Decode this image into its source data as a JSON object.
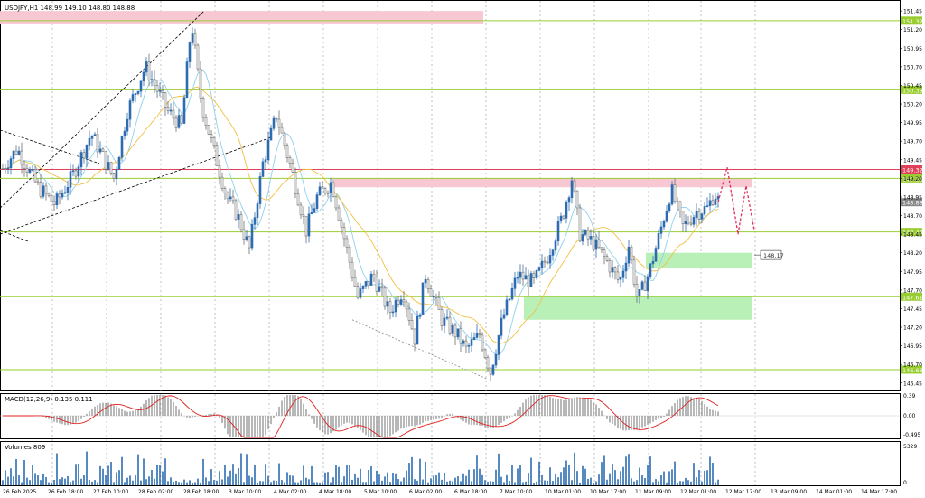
{
  "header": {
    "symbol_info": "USDJPY,H1  148.99 149.10 148.80 148.88",
    "macd_label": "MACD(12,26,9) 0.135 0.111",
    "volume_label": "Volumes 809"
  },
  "colors": {
    "bull": "#2d6db0",
    "bear": "#6e6e6e",
    "ma_fast": "#8fd0ea",
    "ma_slow": "#f0c040",
    "level_green": "#9acd32",
    "level_red": "#e0405a",
    "zone_red": "#f8c8d2",
    "zone_green": "#b8f0b8",
    "macd_signal": "#e02020",
    "forecast": "#e0305a",
    "volume": "#2d6db0",
    "grid": "#9a9a9a"
  },
  "chart_data": {
    "type": "candlestick",
    "symbol": "USDJPY",
    "timeframe": "H1",
    "ylim": [
      146.35,
      151.5
    ],
    "y_ticks": [
      "151.45",
      "151.20",
      "150.95",
      "150.70",
      "150.45",
      "150.20",
      "149.95",
      "149.70",
      "149.45",
      "149.20",
      "148.95",
      "148.70",
      "148.45",
      "148.20",
      "147.95",
      "147.70",
      "147.45",
      "147.20",
      "146.95",
      "146.70",
      "146.45"
    ],
    "x_ticks": [
      "26 Feb 2025",
      "26 Feb 18:00",
      "27 Feb 10:00",
      "28 Feb 02:00",
      "28 Feb 18:00",
      "3 Mar 10:00",
      "4 Mar 02:00",
      "4 Mar 18:00",
      "5 Mar 10:00",
      "6 Mar 02:00",
      "6 Mar 18:00",
      "7 Mar 10:00",
      "10 Mar 01:00",
      "10 Mar 17:00",
      "11 Mar 09:00",
      "12 Mar 01:00",
      "12 Mar 17:00",
      "13 Mar 09:00",
      "14 Mar 01:00",
      "14 Mar 17:00"
    ],
    "price_path": [
      [
        0,
        149.3
      ],
      [
        18,
        149.6
      ],
      [
        40,
        149.1
      ],
      [
        60,
        148.85
      ],
      [
        80,
        149.25
      ],
      [
        100,
        149.8
      ],
      [
        125,
        149.2
      ],
      [
        140,
        150.1
      ],
      [
        160,
        150.7
      ],
      [
        185,
        150.1
      ],
      [
        200,
        149.9
      ],
      [
        211,
        151.3
      ],
      [
        222,
        150.2
      ],
      [
        235,
        149.6
      ],
      [
        250,
        148.95
      ],
      [
        262,
        148.7
      ],
      [
        275,
        148.25
      ],
      [
        290,
        149.4
      ],
      [
        305,
        150.05
      ],
      [
        322,
        149.3
      ],
      [
        338,
        148.5
      ],
      [
        350,
        148.95
      ],
      [
        366,
        149.15
      ],
      [
        380,
        148.4
      ],
      [
        395,
        147.6
      ],
      [
        412,
        147.9
      ],
      [
        430,
        147.4
      ],
      [
        445,
        147.7
      ],
      [
        458,
        147.05
      ],
      [
        470,
        147.9
      ],
      [
        488,
        147.3
      ],
      [
        505,
        147.1
      ],
      [
        515,
        146.9
      ],
      [
        530,
        147.1
      ],
      [
        542,
        146.6
      ],
      [
        555,
        147.3
      ],
      [
        572,
        147.9
      ],
      [
        590,
        147.8
      ],
      [
        605,
        148.15
      ],
      [
        622,
        148.7
      ],
      [
        632,
        149.2
      ],
      [
        641,
        148.45
      ],
      [
        655,
        148.35
      ],
      [
        670,
        148.1
      ],
      [
        685,
        147.8
      ],
      [
        695,
        148.3
      ],
      [
        705,
        147.55
      ],
      [
        718,
        147.95
      ],
      [
        728,
        148.4
      ],
      [
        742,
        149.05
      ],
      [
        755,
        148.55
      ],
      [
        770,
        148.75
      ],
      [
        782,
        148.8
      ],
      [
        790,
        149.0
      ],
      [
        795,
        148.88
      ]
    ],
    "forecast_path": [
      [
        795,
        148.88
      ],
      [
        805,
        149.35
      ],
      [
        817,
        148.45
      ],
      [
        826,
        149.1
      ],
      [
        835,
        148.5
      ]
    ],
    "levels": [
      {
        "label": "151.32",
        "price": 151.32,
        "color": "#9acd32"
      },
      {
        "label": "150.39",
        "price": 150.39,
        "color": "#9acd32"
      },
      {
        "label": "149.32",
        "price": 149.32,
        "color": "#e0405a"
      },
      {
        "label": "149.20",
        "price": 149.2,
        "color": "#9acd32"
      },
      {
        "label": "148.88",
        "price": 148.88,
        "color": "#888888"
      },
      {
        "label": "148.48",
        "price": 148.48,
        "color": "#9acd32"
      },
      {
        "label": "147.61",
        "price": 147.61,
        "color": "#9acd32"
      },
      {
        "label": "146.63",
        "price": 146.63,
        "color": "#9acd32"
      }
    ],
    "price_callout": {
      "label": "148.17",
      "price": 148.17
    },
    "zones": [
      {
        "x0": 0,
        "x1": 535,
        "y0": 151.27,
        "y1": 151.45,
        "color": "#f8c8d2"
      },
      {
        "x0": 370,
        "x1": 833,
        "y0": 149.08,
        "y1": 149.2,
        "color": "#f8c8d2"
      },
      {
        "x0": 715,
        "x1": 833,
        "y0": 148.0,
        "y1": 148.2,
        "color": "#b8f0b8"
      },
      {
        "x0": 580,
        "x1": 833,
        "y0": 147.3,
        "y1": 147.61,
        "color": "#b8f0b8"
      }
    ],
    "macd": {
      "label": "MACD(12,26,9)",
      "main": 0.135,
      "signal": 0.111,
      "ylim": [
        -0.495,
        0.39
      ],
      "ticks": [
        "0.39",
        "0.00",
        "-0.495"
      ]
    },
    "volume": {
      "label": "Volumes",
      "value": 809,
      "ticks": [
        "5329",
        "0"
      ]
    }
  }
}
